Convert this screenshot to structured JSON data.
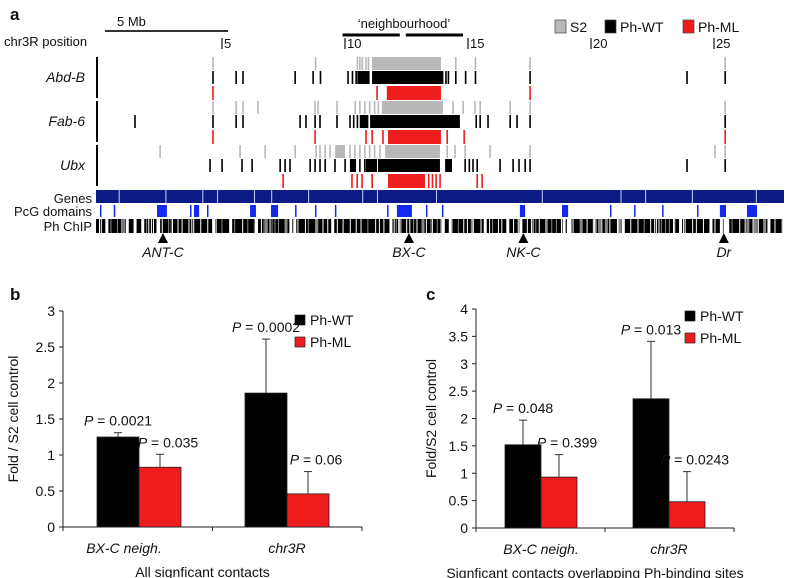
{
  "colors": {
    "s2": "#b8b8b8",
    "wt": "#000000",
    "ml": "#ee1c1c",
    "genes": "#0b1a84",
    "pcg": "#1428f0",
    "chip": "#000000"
  },
  "panel_a": {
    "label": "a",
    "scale_bar_label": "5 Mb",
    "neighbourhood_label": "‘neighbourhood’",
    "neighbourhood_range_mb": [
      9.9,
      14.8
    ],
    "position_label": "chr3R position",
    "position_ticks": [
      "5",
      "10",
      "15",
      "20",
      "25"
    ],
    "position_tick_values": [
      5,
      10,
      15,
      20,
      25
    ],
    "legend": [
      "S2",
      "Ph-WT",
      "Ph-ML"
    ],
    "viewpoints": [
      {
        "name": "Abd-B",
        "s2": [
          4.63,
          8.8,
          10.5,
          10.6,
          10.7,
          10.85,
          10.95,
          [
            11.1,
            13.9
          ],
          14.5,
          15.3,
          17.52,
          25.45
        ],
        "wt": [
          4.63,
          5.57,
          5.85,
          7.97,
          8.7,
          9.0,
          10.12,
          10.3,
          10.45,
          [
            10.5,
            11.0
          ],
          [
            11.1,
            14.0
          ],
          14.1,
          14.2,
          14.5,
          14.9,
          15.3,
          17.52,
          23.9,
          25.45
        ],
        "ml": [
          4.63,
          11.3,
          [
            11.7,
            13.9
          ],
          17.52
        ]
      },
      {
        "name": "Fab-6",
        "s2": [
          4.63,
          5.57,
          5.85,
          6.46,
          8.78,
          8.9,
          9.67,
          10.41,
          10.6,
          10.8,
          11.0,
          11.2,
          11.35,
          [
            11.5,
            13.98
          ],
          14.39,
          14.8,
          15.28,
          15.49,
          16.71,
          17.52,
          25.45
        ],
        "wt": [
          1.46,
          4.63,
          5.57,
          5.85,
          8.17,
          8.41,
          8.78,
          8.98,
          9.67,
          10.2,
          10.35,
          10.5,
          [
            10.6,
            10.95
          ],
          [
            11.02,
            14.67
          ],
          15.33,
          15.49,
          15.81,
          16.71,
          16.99,
          17.52,
          25.45
        ],
        "ml": [
          4.63,
          8.78,
          10.85,
          11.1,
          11.54,
          [
            11.75,
            13.9
          ],
          14.15,
          14.84,
          25.45
        ]
      },
      {
        "name": "Ubx",
        "s2": [
          2.48,
          5.73,
          6.75,
          7.97,
          8.82,
          8.98,
          9.19,
          9.39,
          [
            9.6,
            10.0
          ],
          10.2,
          10.4,
          10.6,
          10.8,
          11.0,
          11.2,
          11.42,
          [
            11.63,
            13.86
          ],
          14.15,
          14.47,
          14.88,
          15.89,
          17.52,
          25.04,
          25.45
        ],
        "wt": [
          4.51,
          5.0,
          5.81,
          6.22,
          7.36,
          7.56,
          7.76,
          8.58,
          8.78,
          8.98,
          9.19,
          9.59,
          10.0,
          [
            10.2,
            10.45
          ],
          10.6,
          10.8,
          [
            10.85,
            11.3
          ],
          [
            11.34,
            13.86
          ],
          [
            14.07,
            14.35
          ],
          14.88,
          15.05,
          15.2,
          15.37,
          16.3,
          16.83,
          17.07,
          17.32,
          17.52,
          23.9,
          25.45
        ],
        "ml": [
          7.48,
          10.28,
          10.49,
          10.69,
          11.1,
          [
            11.75,
            13.25
          ],
          13.4,
          13.55,
          13.7,
          13.86,
          15.37,
          15.57
        ]
      }
    ],
    "tracks": [
      "Genes",
      "PcG domains",
      "Ph ChIP"
    ],
    "gene_gaps_mb": [
      0.8,
      2.7,
      4.2,
      4.8,
      6.3,
      7.0,
      8.5,
      10.7,
      11.3,
      13.7,
      18.0,
      21.2,
      22.2,
      24.1,
      26.7
    ],
    "pcg_domains_mb": [
      0.04,
      0.6,
      [
        2.36,
        2.76
      ],
      3.7,
      [
        3.86,
        4.07
      ],
      4.39,
      [
        6.14,
        6.38
      ],
      [
        6.99,
        7.28
      ],
      7.97,
      8.78,
      9.59,
      11.71,
      [
        12.11,
        12.72
      ],
      13.29,
      13.94,
      [
        17.11,
        17.32
      ],
      [
        18.82,
        19.07
      ],
      20.77,
      21.75,
      22.89,
      24.31,
      [
        25.24,
        25.49
      ],
      [
        26.34,
        26.75
      ]
    ],
    "landmarks": [
      {
        "name": "ANT-C",
        "mb": 2.6
      },
      {
        "name": "BX-C",
        "mb": 12.6
      },
      {
        "name": "NK-C",
        "mb": 17.25
      },
      {
        "name": "Dr",
        "mb": 25.4
      }
    ]
  },
  "chart_data": [
    {
      "panel": "b",
      "type": "bar",
      "categories": [
        "BX-C neigh.",
        "chr3R"
      ],
      "xlabel": "All signficant contacts",
      "ylabel": "Fold / S2 cell control",
      "ylim": [
        0,
        3
      ],
      "yticks": [
        "0",
        "0.5",
        "1",
        "1.5",
        "2",
        "2.5",
        "3"
      ],
      "ytick_values": [
        0,
        0.5,
        1,
        1.5,
        2,
        2.5,
        3
      ],
      "legend_placement": "top-right",
      "series": [
        {
          "name": "Ph-WT",
          "color": "#000000",
          "values": [
            1.25,
            1.86
          ],
          "error_top": [
            1.31,
            2.61
          ],
          "pvalues": [
            "0.0021",
            "0.0002"
          ]
        },
        {
          "name": "Ph-ML",
          "color": "#ee1c1c",
          "values": [
            0.83,
            0.46
          ],
          "error_top": [
            1.01,
            0.77
          ],
          "pvalues": [
            "0.035",
            "0.06"
          ]
        }
      ]
    },
    {
      "panel": "c",
      "type": "bar",
      "categories": [
        "BX-C neigh.",
        "chr3R"
      ],
      "xlabel": "Signficant contacts overlapping Ph-binding sites",
      "ylabel": "Fold/S2 cell control",
      "ylim": [
        0,
        4
      ],
      "yticks": [
        "0",
        "0.5",
        "1",
        "1.5",
        "2",
        "2.5",
        "3",
        "3.5",
        "4"
      ],
      "ytick_values": [
        0,
        0.5,
        1,
        1.5,
        2,
        2.5,
        3,
        3.5,
        4
      ],
      "legend_placement": "top-right",
      "series": [
        {
          "name": "Ph-WT",
          "color": "#000000",
          "values": [
            1.52,
            2.36
          ],
          "error_top": [
            1.97,
            3.41
          ],
          "pvalues": [
            "0.048",
            "0.013"
          ]
        },
        {
          "name": "Ph-ML",
          "color": "#ee1c1c",
          "values": [
            0.93,
            0.48
          ],
          "error_top": [
            1.34,
            1.03
          ],
          "pvalues": [
            "0.399",
            "0.0243"
          ]
        }
      ]
    }
  ],
  "p_prefix": "P",
  "p_eq": " = "
}
